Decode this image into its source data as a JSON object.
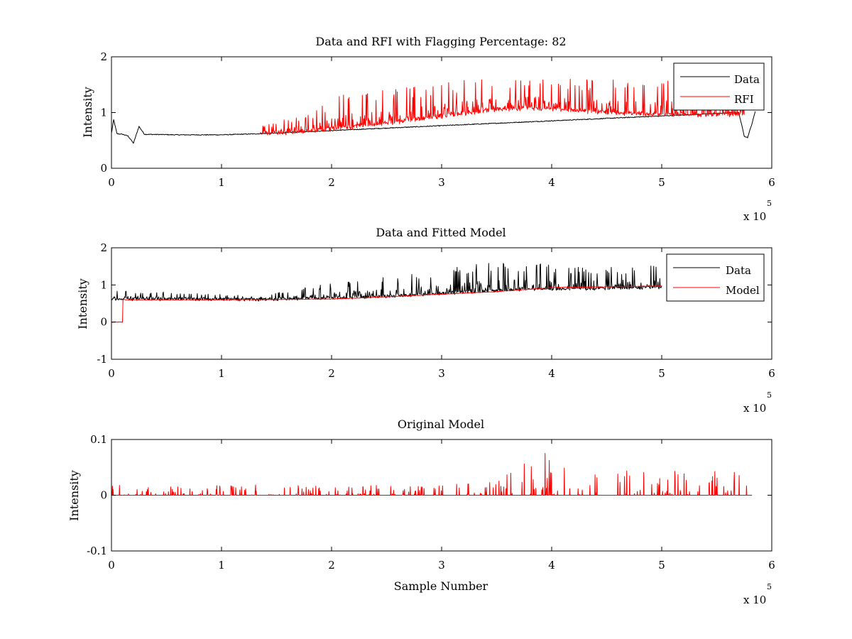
{
  "chart_data": [
    {
      "type": "line",
      "title": "Data and RFI with Flagging Percentage: 82",
      "xlabel": "",
      "ylabel": "Intensity",
      "x_multiplier": "x 10",
      "x_exponent": "5",
      "xlim": [
        0,
        6
      ],
      "ylim": [
        0,
        2
      ],
      "xticks": [
        "0",
        "1",
        "2",
        "3",
        "4",
        "5",
        "6"
      ],
      "yticks": [
        "0",
        "1",
        "2"
      ],
      "grid": false,
      "legend_position": "top-right",
      "series": [
        {
          "name": "Data",
          "color": "#000000",
          "x": [
            0,
            0.02,
            0.05,
            0.1,
            0.15,
            0.2,
            0.25,
            0.3,
            0.6,
            1.0,
            1.35,
            5.7,
            5.75,
            5.78,
            5.82,
            5.85
          ],
          "y": [
            0.63,
            0.87,
            0.62,
            0.61,
            0.58,
            0.45,
            0.75,
            0.61,
            0.6,
            0.6,
            0.62,
            1.0,
            0.58,
            0.55,
            0.8,
            1.02
          ]
        },
        {
          "name": "RFI",
          "color": "#ff0000",
          "x": [
            1.35,
            1.8,
            2.2,
            2.6,
            3.0,
            3.4,
            3.8,
            4.2,
            4.6,
            5.0,
            5.4,
            5.75
          ],
          "y": [
            0.62,
            0.68,
            0.75,
            0.85,
            0.95,
            1.05,
            1.1,
            1.05,
            1.0,
            0.98,
            0.97,
            0.97
          ],
          "peak_y": [
            0.75,
            1.0,
            1.45,
            1.45,
            1.55,
            1.62,
            1.65,
            1.6,
            1.6,
            1.65,
            1.6,
            1.5
          ]
        }
      ]
    },
    {
      "type": "line",
      "title": "Data and Fitted Model",
      "xlabel": "",
      "ylabel": "Intensity",
      "x_multiplier": "x 10",
      "x_exponent": "5",
      "xlim": [
        0,
        6
      ],
      "ylim": [
        -1,
        2
      ],
      "xticks": [
        "0",
        "1",
        "2",
        "3",
        "4",
        "5",
        "6"
      ],
      "yticks": [
        "-1",
        "0",
        "1",
        "2"
      ],
      "grid": false,
      "legend_position": "top-right",
      "series": [
        {
          "name": "Data",
          "color": "#000000",
          "x": [
            0,
            1.35,
            1.8,
            2.2,
            2.6,
            3.0,
            3.4,
            3.8,
            4.2,
            4.6,
            5.0
          ],
          "y": [
            0.63,
            0.62,
            0.65,
            0.68,
            0.72,
            0.78,
            0.85,
            0.9,
            0.9,
            0.92,
            0.95
          ],
          "peak_y": [
            0.87,
            0.7,
            0.95,
            1.15,
            1.25,
            1.45,
            1.6,
            1.62,
            1.55,
            1.5,
            1.65
          ]
        },
        {
          "name": "Model",
          "color": "#ff0000",
          "x": [
            0,
            0.1,
            0.1,
            0.12,
            1.0,
            2.0,
            2.5,
            3.0,
            3.5,
            4.0,
            4.5,
            5.0
          ],
          "y": [
            0.0,
            0.0,
            0.65,
            0.6,
            0.6,
            0.62,
            0.68,
            0.75,
            0.82,
            0.93,
            0.95,
            0.97
          ]
        }
      ]
    },
    {
      "type": "line",
      "title": "Original Model",
      "xlabel": "Sample Number",
      "ylabel": "Intensity",
      "x_multiplier": "x 10",
      "x_exponent": "5",
      "xlim": [
        0,
        6
      ],
      "ylim": [
        -0.1,
        0.1
      ],
      "xticks": [
        "0",
        "1",
        "2",
        "3",
        "4",
        "5",
        "6"
      ],
      "yticks": [
        "-0.1",
        "0",
        "0.1"
      ],
      "grid": false,
      "legend_position": "none",
      "series": [
        {
          "color": "#ff0000",
          "x": [
            0,
            0.5,
            1.0,
            1.5,
            2.0,
            2.5,
            3.0,
            3.5,
            3.95,
            4.0,
            4.5,
            5.0,
            5.5,
            5.82
          ],
          "y": [
            0,
            0,
            0,
            0,
            0,
            0,
            0,
            0,
            0,
            0,
            0,
            0,
            0,
            0
          ],
          "spike_y": [
            0.02,
            0.015,
            0.018,
            0.02,
            0.015,
            0.02,
            0.018,
            0.025,
            0.085,
            0.07,
            0.045,
            0.047,
            0.05,
            0.048
          ]
        }
      ]
    }
  ]
}
